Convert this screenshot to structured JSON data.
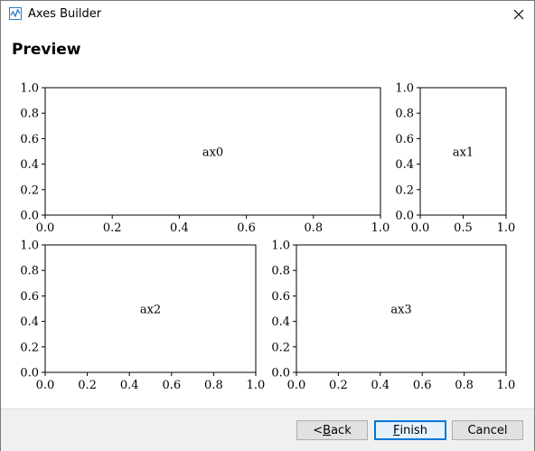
{
  "window": {
    "title": "Axes Builder",
    "icon": "chart-app-icon",
    "close_icon": "close-icon"
  },
  "page": {
    "heading": "Preview"
  },
  "footer": {
    "buttons": [
      {
        "pre": "< ",
        "mnemonic": "B",
        "rest": "ack"
      },
      {
        "pre": "",
        "mnemonic": "F",
        "rest": "inish"
      },
      {
        "pre": "",
        "mnemonic": "",
        "rest": "Cancel"
      }
    ]
  },
  "chart_data": [
    {
      "type": "scatter",
      "label": "ax0",
      "xlim": [
        0,
        1
      ],
      "ylim": [
        0,
        1
      ],
      "x_ticks": [
        "0.0",
        "0.2",
        "0.4",
        "0.6",
        "0.8",
        "1.0"
      ],
      "y_ticks": [
        "0.0",
        "0.2",
        "0.4",
        "0.6",
        "0.8",
        "1.0"
      ],
      "x": [],
      "y": []
    },
    {
      "type": "scatter",
      "label": "ax1",
      "xlim": [
        0,
        1
      ],
      "ylim": [
        0,
        1
      ],
      "x_ticks": [
        "0.0",
        "0.5",
        "1.0"
      ],
      "y_ticks": [
        "0.0",
        "0.2",
        "0.4",
        "0.6",
        "0.8",
        "1.0"
      ],
      "x": [],
      "y": []
    },
    {
      "type": "scatter",
      "label": "ax2",
      "xlim": [
        0,
        1
      ],
      "ylim": [
        0,
        1
      ],
      "x_ticks": [
        "0.0",
        "0.2",
        "0.4",
        "0.6",
        "0.8",
        "1.0"
      ],
      "y_ticks": [
        "0.0",
        "0.2",
        "0.4",
        "0.6",
        "0.8",
        "1.0"
      ],
      "x": [],
      "y": []
    },
    {
      "type": "scatter",
      "label": "ax3",
      "xlim": [
        0,
        1
      ],
      "ylim": [
        0,
        1
      ],
      "x_ticks": [
        "0.0",
        "0.2",
        "0.4",
        "0.6",
        "0.8",
        "1.0"
      ],
      "y_ticks": [
        "0.0",
        "0.2",
        "0.4",
        "0.6",
        "0.8",
        "1.0"
      ],
      "x": [],
      "y": []
    }
  ]
}
